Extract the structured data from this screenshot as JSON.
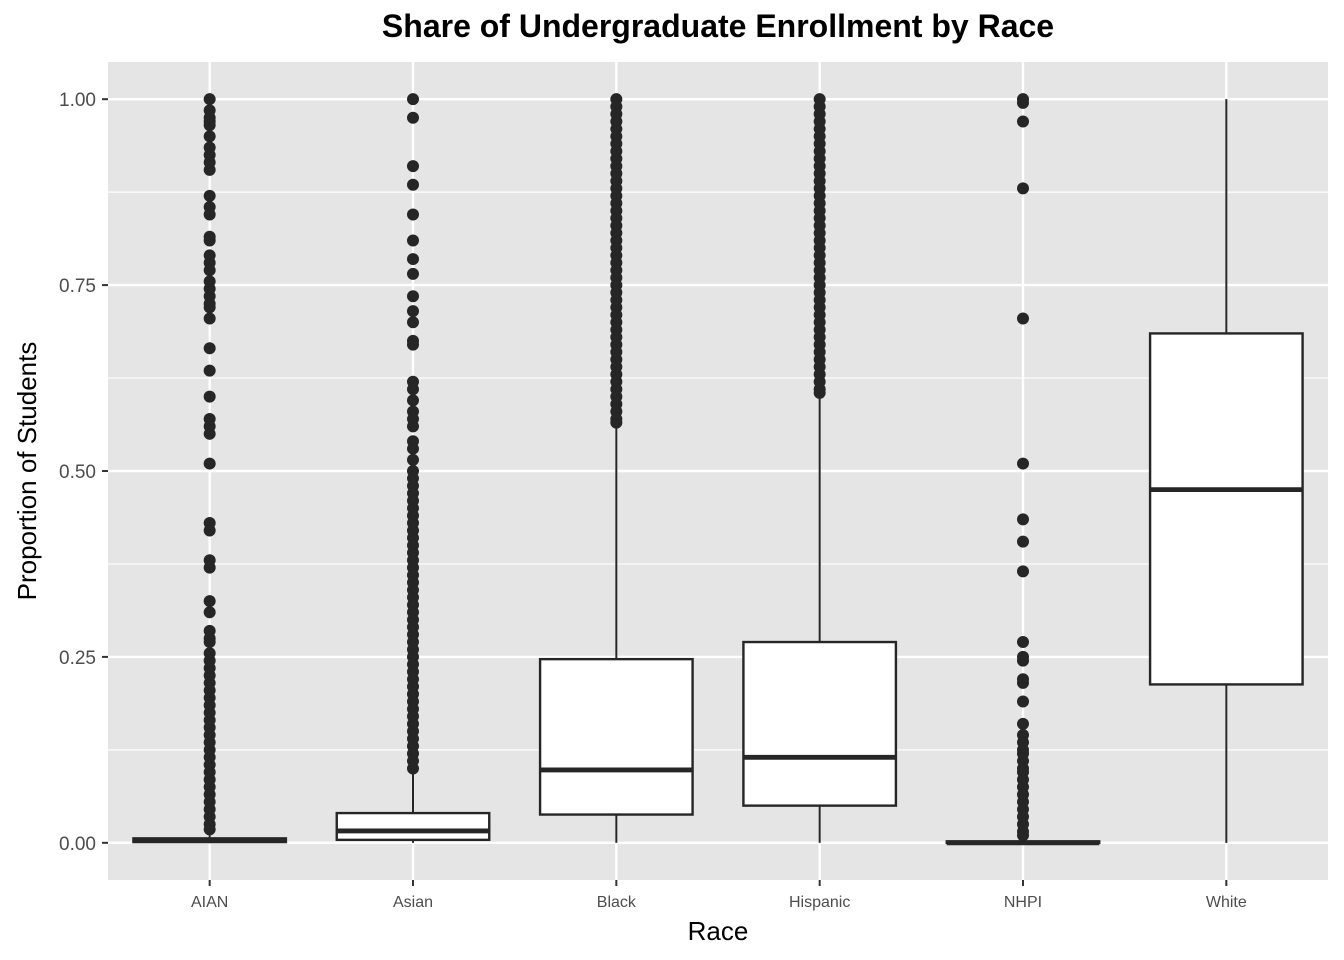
{
  "chart_data": {
    "type": "box",
    "title": "Share of Undergraduate Enrollment by Race",
    "xlabel": "Race",
    "ylabel": "Proportion of Students",
    "ylim": [
      -0.05,
      1.05
    ],
    "yticks": [
      0.0,
      0.25,
      0.5,
      0.75,
      1.0
    ],
    "ytick_labels": [
      "0.00",
      "0.25",
      "0.50",
      "0.75",
      "1.00"
    ],
    "grid": true,
    "categories": [
      "AIAN",
      "Asian",
      "Black",
      "Hispanic",
      "NHPI",
      "White"
    ],
    "boxes": [
      {
        "category": "AIAN",
        "whisker_low": 0.0,
        "q1": 0.001,
        "median": 0.003,
        "q3": 0.006,
        "whisker_high": 0.015,
        "outliers": [
          1.0,
          0.985,
          0.975,
          0.97,
          0.965,
          0.95,
          0.935,
          0.925,
          0.915,
          0.905,
          0.87,
          0.855,
          0.845,
          0.815,
          0.81,
          0.79,
          0.78,
          0.77,
          0.755,
          0.745,
          0.735,
          0.725,
          0.72,
          0.705,
          0.665,
          0.635,
          0.6,
          0.57,
          0.56,
          0.55,
          0.51,
          0.43,
          0.42,
          0.38,
          0.37,
          0.325,
          0.31,
          0.285,
          0.275,
          0.27,
          0.255,
          0.245,
          0.235,
          0.225,
          0.215,
          0.205,
          0.195,
          0.185,
          0.175,
          0.165,
          0.155,
          0.145,
          0.135,
          0.125,
          0.115,
          0.105,
          0.095,
          0.085,
          0.075,
          0.065,
          0.055,
          0.045,
          0.035,
          0.025,
          0.018
        ]
      },
      {
        "category": "Asian",
        "whisker_low": 0.0,
        "q1": 0.004,
        "median": 0.016,
        "q3": 0.04,
        "whisker_high": 0.095,
        "outliers": [
          1.0,
          0.975,
          0.91,
          0.885,
          0.845,
          0.81,
          0.785,
          0.765,
          0.735,
          0.715,
          0.7,
          0.675,
          0.67,
          0.62,
          0.61,
          0.595,
          0.58,
          0.57,
          0.56,
          0.54,
          0.53,
          0.515,
          0.5,
          0.49,
          0.48,
          0.47,
          0.46,
          0.45,
          0.44,
          0.43,
          0.42,
          0.41,
          0.4,
          0.39,
          0.38,
          0.37,
          0.36,
          0.35,
          0.34,
          0.33,
          0.32,
          0.31,
          0.3,
          0.29,
          0.28,
          0.27,
          0.26,
          0.25,
          0.24,
          0.23,
          0.22,
          0.21,
          0.2,
          0.19,
          0.18,
          0.17,
          0.16,
          0.15,
          0.14,
          0.13,
          0.12,
          0.11,
          0.1
        ]
      },
      {
        "category": "Black",
        "whisker_low": 0.0,
        "q1": 0.038,
        "median": 0.098,
        "q3": 0.247,
        "whisker_high": 0.56,
        "outliers": [
          1.0,
          0.99,
          0.98,
          0.97,
          0.96,
          0.95,
          0.94,
          0.93,
          0.92,
          0.91,
          0.9,
          0.89,
          0.88,
          0.87,
          0.86,
          0.85,
          0.84,
          0.83,
          0.82,
          0.81,
          0.8,
          0.79,
          0.78,
          0.77,
          0.76,
          0.75,
          0.74,
          0.73,
          0.72,
          0.71,
          0.7,
          0.69,
          0.68,
          0.67,
          0.66,
          0.65,
          0.64,
          0.63,
          0.62,
          0.61,
          0.6,
          0.59,
          0.58,
          0.57,
          0.565
        ]
      },
      {
        "category": "Hispanic",
        "whisker_low": 0.0,
        "q1": 0.05,
        "median": 0.115,
        "q3": 0.27,
        "whisker_high": 0.6,
        "outliers": [
          1.0,
          0.99,
          0.98,
          0.97,
          0.96,
          0.95,
          0.94,
          0.93,
          0.92,
          0.91,
          0.9,
          0.89,
          0.88,
          0.87,
          0.86,
          0.85,
          0.84,
          0.83,
          0.82,
          0.81,
          0.8,
          0.79,
          0.78,
          0.77,
          0.76,
          0.75,
          0.74,
          0.73,
          0.72,
          0.71,
          0.7,
          0.69,
          0.68,
          0.67,
          0.66,
          0.65,
          0.64,
          0.63,
          0.62,
          0.61,
          0.605
        ]
      },
      {
        "category": "NHPI",
        "whisker_low": 0.0,
        "q1": 0.0,
        "median": 0.0,
        "q3": 0.002,
        "whisker_high": 0.004,
        "outliers": [
          1.0,
          0.995,
          0.97,
          0.88,
          0.705,
          0.51,
          0.435,
          0.405,
          0.365,
          0.27,
          0.25,
          0.245,
          0.22,
          0.215,
          0.19,
          0.16,
          0.145,
          0.135,
          0.125,
          0.12,
          0.11,
          0.1,
          0.095,
          0.085,
          0.075,
          0.065,
          0.055,
          0.045,
          0.035,
          0.025,
          0.015,
          0.01
        ]
      },
      {
        "category": "White",
        "whisker_low": 0.0,
        "q1": 0.213,
        "median": 0.475,
        "q3": 0.685,
        "whisker_high": 1.0,
        "outliers": []
      }
    ],
    "colors": {
      "panel": "#e5e5e5",
      "grid": "#ffffff",
      "box_fill": "#ffffff",
      "stroke": "#262626",
      "tick_text": "#4d4d4d"
    }
  }
}
